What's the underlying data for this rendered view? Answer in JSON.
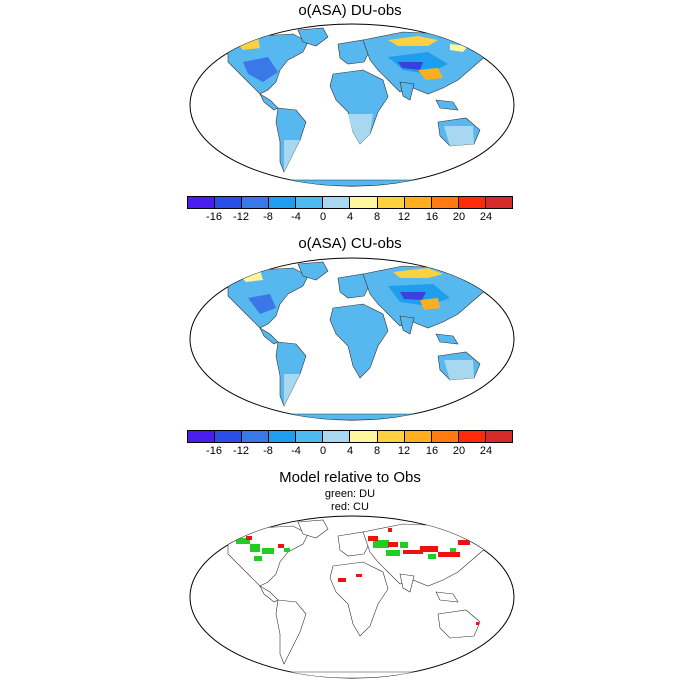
{
  "panels": [
    {
      "title": "o(ASA) DU-obs"
    },
    {
      "title": "o(ASA) CU-obs"
    },
    {
      "title": "Model relative to Obs",
      "legend": [
        "green: DU",
        "red: CU"
      ]
    }
  ],
  "colorbar": {
    "colors": [
      "#4a1ef0",
      "#2a4fe8",
      "#3a78e8",
      "#1f9ef0",
      "#4fbaf0",
      "#a7d8ef",
      "#fff6a0",
      "#ffd040",
      "#ffae20",
      "#ff7a10",
      "#ff2a0a",
      "#d42a2a"
    ],
    "ticks": [
      "-16",
      "-12",
      "-8",
      "-4",
      "0",
      "4",
      "8",
      "12",
      "16",
      "20",
      "24"
    ]
  },
  "legend_colors": {
    "du": "#22cc22",
    "cu": "#ee1111"
  }
}
